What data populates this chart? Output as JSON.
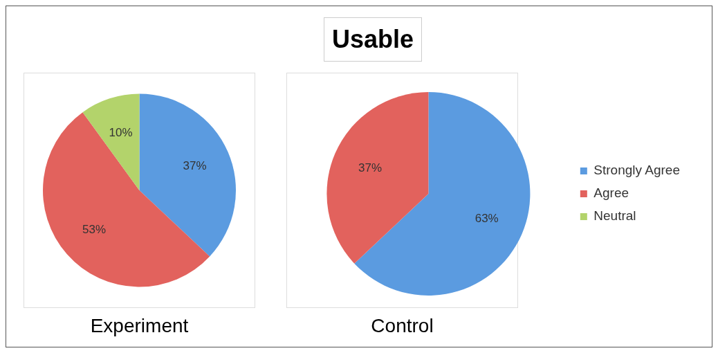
{
  "chart_data": [
    {
      "type": "pie",
      "xlabel": "Experiment",
      "categories": [
        null,
        null,
        null
      ],
      "values": [
        37,
        53,
        10
      ],
      "colors": [
        "#5b9be0",
        "#e2625d",
        "#b3d36b"
      ],
      "value_labels": [
        "37%",
        "53%",
        "10%"
      ],
      "legend": false
    },
    {
      "type": "pie",
      "title": "Usable",
      "xlabel": "Control",
      "categories": [
        "Strongly Agree",
        "Agree",
        "Neutral"
      ],
      "values": [
        63,
        37,
        0
      ],
      "colors": [
        "#5b9be0",
        "#e2625d",
        "#b3d36b"
      ],
      "value_labels": [
        "63%",
        "37%",
        null
      ],
      "legend": "right"
    }
  ]
}
